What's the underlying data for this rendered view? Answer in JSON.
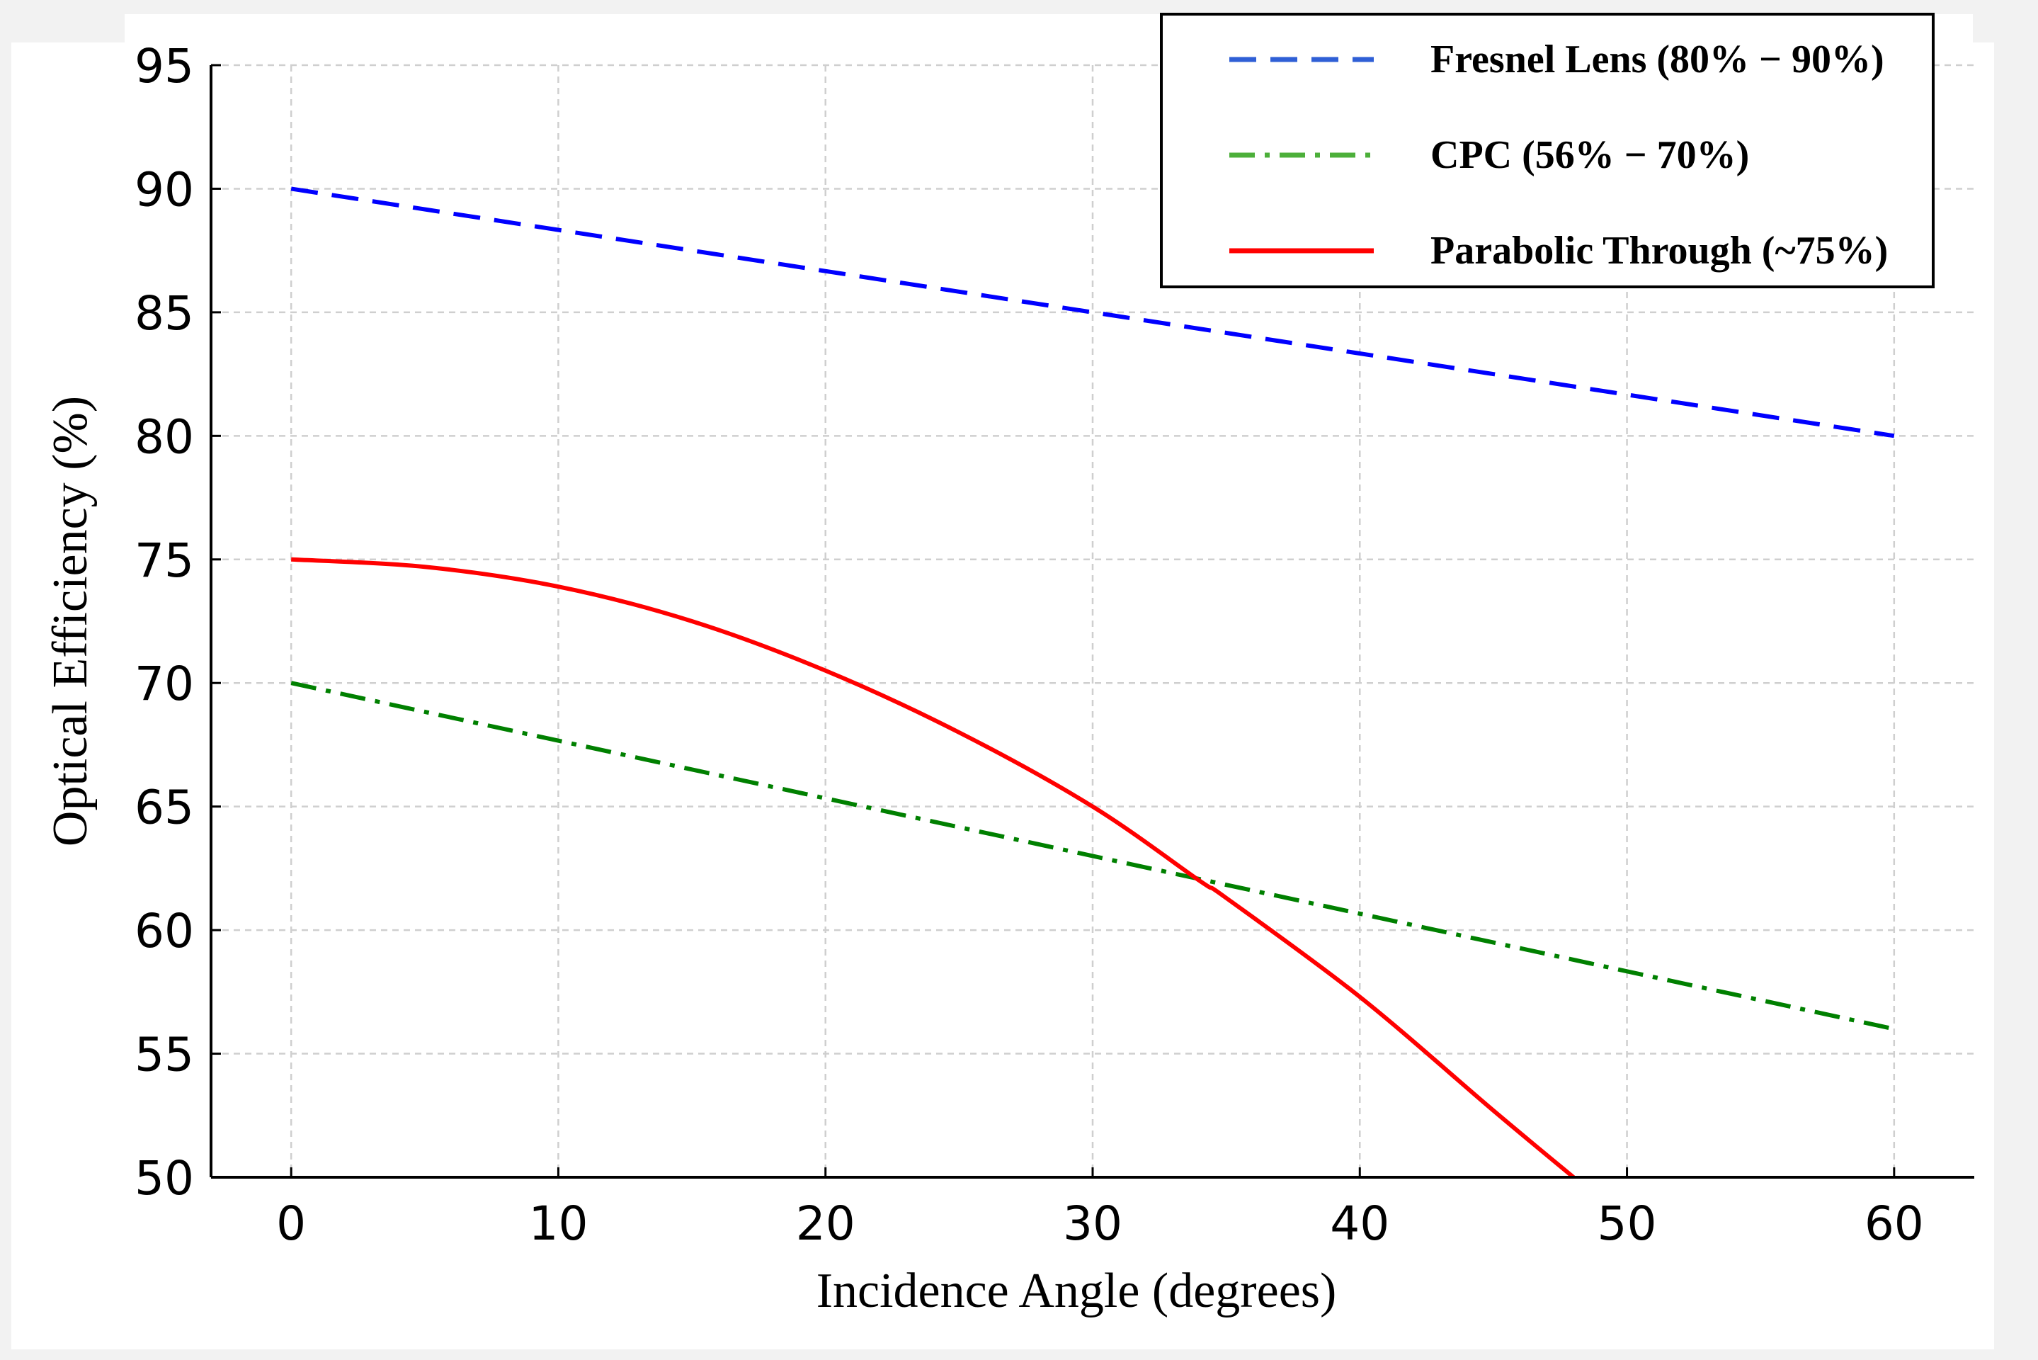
{
  "chart_data": {
    "type": "line",
    "title": "",
    "xlabel": "Incidence Angle (degrees)",
    "ylabel": "Optical Efficiency (%)",
    "xlim": [
      -3,
      63
    ],
    "ylim": [
      50,
      95
    ],
    "x_ticks": [
      0,
      10,
      20,
      30,
      40,
      50,
      60
    ],
    "y_ticks": [
      50,
      55,
      60,
      65,
      70,
      75,
      80,
      85,
      90,
      95
    ],
    "grid": true,
    "legend_position": "top-right",
    "series": [
      {
        "name": "Fresnel Lens (80% − 90%)",
        "color": "#0000ff",
        "legend_color": "#2f5fd6",
        "style": "dashed",
        "x": [
          0,
          60
        ],
        "y": [
          90,
          80
        ]
      },
      {
        "name": "CPC (56% − 70%)",
        "color": "#008000",
        "legend_color": "#4caf3a",
        "style": "dashdot",
        "x": [
          0,
          60
        ],
        "y": [
          70,
          56
        ]
      },
      {
        "name": "Parabolic Through (~75%)",
        "color": "#ff0000",
        "legend_color": "#ff0000",
        "style": "solid",
        "x": [
          0,
          5,
          10,
          15,
          20,
          25,
          30,
          34,
          35,
          40,
          45,
          48
        ],
        "y": [
          75,
          74.7,
          73.9,
          72.5,
          70.5,
          68.0,
          65.0,
          62.0,
          61.3,
          57.3,
          52.7,
          50.0
        ]
      }
    ]
  }
}
